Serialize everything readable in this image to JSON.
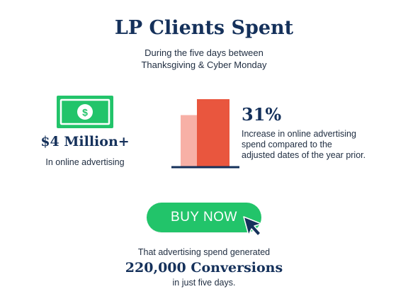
{
  "header": {
    "title": "LP Clients Spent",
    "subtitle_line1": "During the five days between",
    "subtitle_line2": "Thanksgiving & Cyber Monday"
  },
  "left_stat": {
    "value": "$4 Million+",
    "description": "In online advertising",
    "icon": "money-bill-icon",
    "icon_glyph": "$"
  },
  "right_stat": {
    "value": "31%",
    "description_line1": "Increase in online advertising",
    "description_line2": "spend compared to the",
    "description_line3": "adjusted dates of the year prior."
  },
  "bar_graphic": {
    "values": [
      100,
      131
    ],
    "colors": [
      "#f7b0a6",
      "#e9563e"
    ],
    "baseline_color": "#15315b"
  },
  "cta": {
    "label": "BUY NOW",
    "icon": "cursor-arrow-icon"
  },
  "footer": {
    "line1": "That advertising spend generated",
    "headline": "220,000 Conversions",
    "line3": "in just five days."
  },
  "colors": {
    "navy": "#15315b",
    "green": "#22c46a",
    "coral": "#e9563e",
    "light_coral": "#f7b0a6"
  }
}
